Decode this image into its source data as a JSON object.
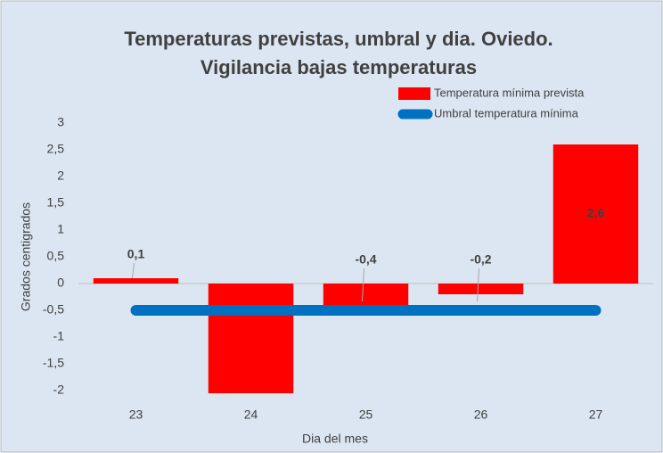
{
  "chart_data": {
    "type": "bar",
    "title": [
      "Temperaturas previstas, umbral y dia. Oviedo.",
      "Vigilancia bajas temperaturas"
    ],
    "x_label": "Dia del mes",
    "y_label": "Grados centigrados",
    "categories": [
      "23",
      "24",
      "25",
      "26",
      "27"
    ],
    "series": [
      {
        "name": "Temperatura mínima prevista",
        "color": "#ff0000",
        "values": [
          0.1,
          -2.05,
          -0.4,
          -0.2,
          2.6
        ],
        "value_labels": [
          "0,1",
          null,
          "-0,4",
          "-0,2",
          "2,6"
        ]
      },
      {
        "name": "Umbral temperatura mínima",
        "color": "#0070c0",
        "chart_type": "line",
        "values": [
          -0.5,
          -0.5,
          -0.5,
          -0.5,
          -0.5
        ]
      }
    ],
    "ylim": [
      -2,
      3
    ],
    "yticks": [
      -2,
      {
        "value": -1.5,
        "label": "-1,5"
      },
      -1,
      {
        "value": -0.5,
        "label": "-0,5"
      },
      0,
      {
        "value": 0.5,
        "label": "0,5"
      },
      1,
      {
        "value": 1.5,
        "label": "1,5"
      },
      2,
      {
        "value": 2.5,
        "label": "2,5"
      },
      3
    ],
    "grid": false,
    "legend": "top-right"
  }
}
